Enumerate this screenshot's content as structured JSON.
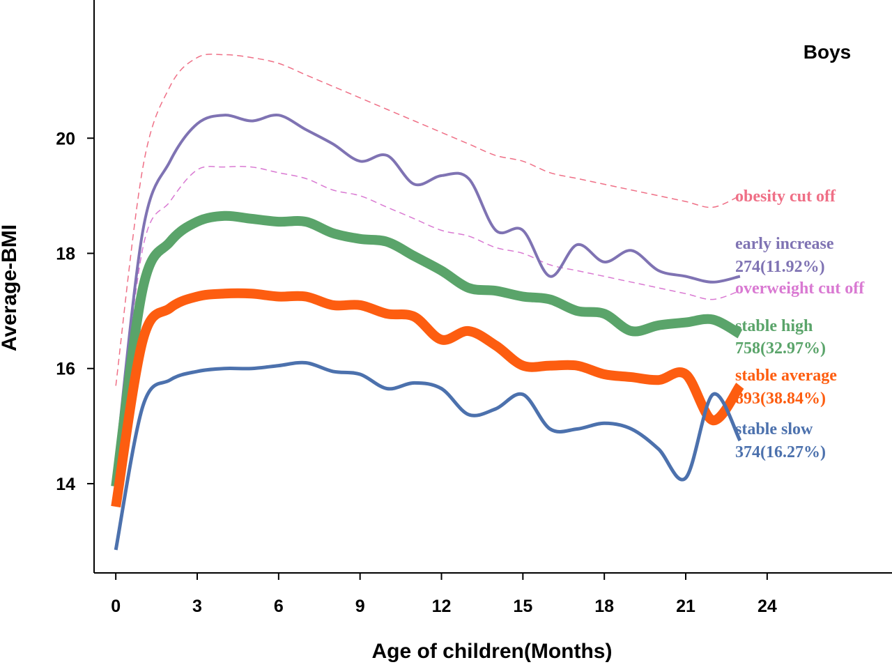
{
  "chart_data": {
    "type": "line",
    "title": "Boys",
    "xlabel": "Age of children(Months)",
    "ylabel": "Average-BMI",
    "xlim": [
      -0.8,
      28.6
    ],
    "ylim": [
      12.45,
      22.4
    ],
    "xticks": [
      0,
      3,
      6,
      9,
      12,
      15,
      18,
      21,
      24
    ],
    "yticks": [
      14,
      16,
      18,
      20
    ],
    "grid": false,
    "x": [
      0,
      1,
      2,
      3,
      4,
      5,
      6,
      7,
      8,
      9,
      10,
      11,
      12,
      13,
      14,
      15,
      16,
      17,
      18,
      19,
      20,
      21,
      22,
      23,
      24
    ],
    "series": [
      {
        "name": "obesity cut off",
        "style": "dashed",
        "color": "#ef6f86",
        "width": 1.5,
        "values": [
          15.7,
          19.5,
          20.9,
          21.4,
          21.45,
          21.4,
          21.3,
          21.1,
          20.9,
          20.7,
          20.5,
          20.3,
          20.1,
          19.9,
          19.7,
          19.6,
          19.4,
          19.3,
          19.2,
          19.1,
          19.0,
          18.9,
          18.8,
          19.0,
          null
        ],
        "label_lines": [
          "obesity cut off"
        ]
      },
      {
        "name": "overweight cut off",
        "style": "dashed",
        "color": "#d979d2",
        "width": 1.5,
        "values": [
          14.4,
          18.1,
          18.9,
          19.45,
          19.5,
          19.5,
          19.4,
          19.3,
          19.1,
          19.0,
          18.8,
          18.6,
          18.4,
          18.3,
          18.1,
          18.0,
          17.8,
          17.7,
          17.6,
          17.5,
          17.4,
          17.3,
          17.2,
          17.35,
          null
        ],
        "label_lines": [
          "overweight cut off"
        ]
      },
      {
        "name": "early increase",
        "style": "solid",
        "color": "#7f73b3",
        "width": 4,
        "values": [
          14.35,
          18.4,
          19.6,
          20.25,
          20.4,
          20.3,
          20.4,
          20.15,
          19.9,
          19.6,
          19.7,
          19.2,
          19.35,
          19.3,
          18.4,
          18.4,
          17.6,
          18.15,
          17.85,
          18.05,
          17.7,
          17.6,
          17.5,
          17.6,
          null
        ],
        "label_lines": [
          "early increase",
          "274(11.92%)"
        ]
      },
      {
        "name": "stable high",
        "style": "solid",
        "color": "#5aa46a",
        "width": 14,
        "values": [
          13.95,
          17.4,
          18.2,
          18.55,
          18.65,
          18.6,
          18.55,
          18.55,
          18.35,
          18.25,
          18.2,
          17.95,
          17.7,
          17.4,
          17.35,
          17.25,
          17.2,
          17.0,
          16.95,
          16.65,
          16.75,
          16.8,
          16.85,
          16.6,
          null
        ],
        "label_lines": [
          "stable high",
          "758(32.97%)"
        ]
      },
      {
        "name": "stable average",
        "style": "solid",
        "color": "#fd5d10",
        "width": 14,
        "values": [
          13.6,
          16.5,
          17.05,
          17.25,
          17.3,
          17.3,
          17.25,
          17.25,
          17.1,
          17.1,
          16.95,
          16.9,
          16.5,
          16.65,
          16.4,
          16.05,
          16.05,
          16.05,
          15.9,
          15.85,
          15.8,
          15.9,
          15.1,
          15.7,
          null
        ],
        "label_lines": [
          "stable average",
          "893(38.84%)"
        ]
      },
      {
        "name": "stable slow",
        "style": "solid",
        "color": "#4c71ad",
        "width": 5,
        "values": [
          12.85,
          15.35,
          15.8,
          15.95,
          16.0,
          16.0,
          16.05,
          16.1,
          15.95,
          15.9,
          15.65,
          15.75,
          15.65,
          15.2,
          15.3,
          15.55,
          14.95,
          14.95,
          15.05,
          14.95,
          14.6,
          14.1,
          15.55,
          14.75,
          null
        ],
        "label_lines": [
          "stable slow",
          "374(16.27%)"
        ]
      }
    ]
  }
}
